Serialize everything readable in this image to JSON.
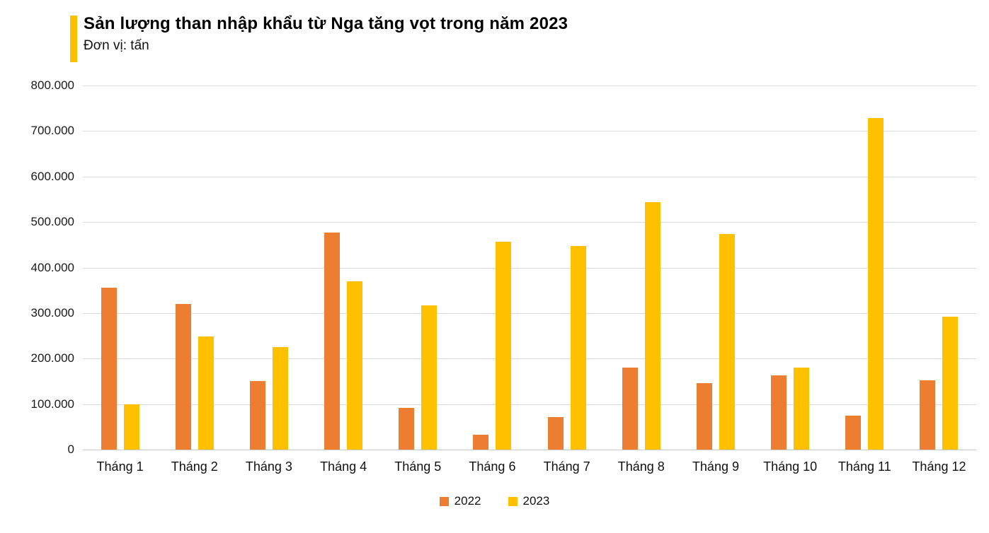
{
  "header": {
    "title": "Sản lượng than nhập khẩu từ Nga tăng vọt trong năm 2023",
    "subtitle": "Đơn vị: tấn",
    "accent_color": "#FFC000"
  },
  "chart_data": {
    "type": "bar",
    "title": "Sản lượng than nhập khẩu từ Nga tăng vọt trong năm 2023",
    "unit_label": "Đơn vị: tấn",
    "categories": [
      "Tháng 1",
      "Tháng 2",
      "Tháng 3",
      "Tháng 4",
      "Tháng 5",
      "Tháng 6",
      "Tháng 7",
      "Tháng 8",
      "Tháng 9",
      "Tháng 10",
      "Tháng 11",
      "Tháng 12"
    ],
    "series": [
      {
        "name": "2022",
        "color": "#ED7D31",
        "values": [
          355000,
          320000,
          150000,
          477000,
          92000,
          32000,
          71000,
          180000,
          146000,
          163000,
          74000,
          152000
        ]
      },
      {
        "name": "2023",
        "color": "#FFC000",
        "values": [
          100000,
          248000,
          226000,
          369000,
          317000,
          456000,
          447000,
          543000,
          474000,
          180000,
          729000,
          292000
        ]
      }
    ],
    "ylim": [
      0,
      800000
    ],
    "y_tick_step": 100000,
    "y_tick_labels": [
      "0",
      "100.000",
      "200.000",
      "300.000",
      "400.000",
      "500.000",
      "600.000",
      "700.000",
      "800.000"
    ],
    "grid": true,
    "gridline_color": "#d9d9d9",
    "legend_position": "bottom-center"
  }
}
